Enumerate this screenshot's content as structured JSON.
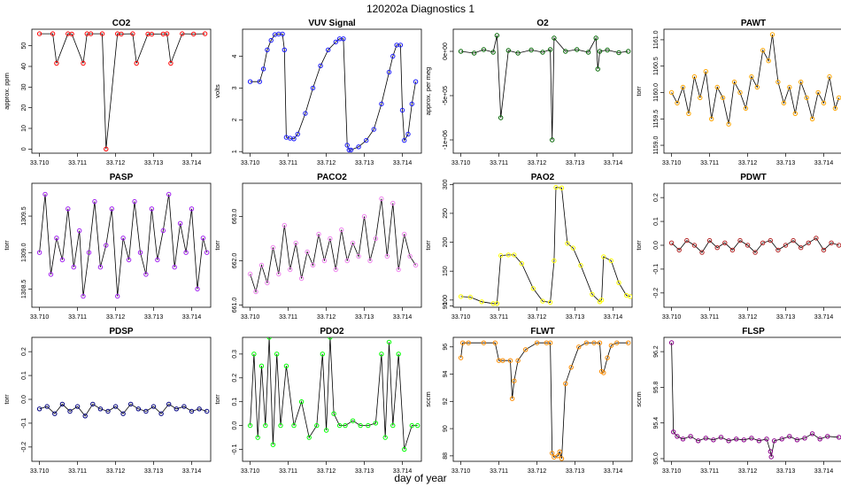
{
  "figure": {
    "title": "120202a   Diagnostics 1",
    "xlabel": "day of year"
  },
  "chart_data": [
    {
      "type": "scatter",
      "title": "CO2",
      "ylabel": "approx. ppm",
      "color": "#ff0000",
      "xlim": [
        33.7098,
        33.7145
      ],
      "ylim": [
        -2,
        58
      ],
      "xticks": [
        "33.710",
        "33.711",
        "33.712",
        "33.713",
        "33.714"
      ],
      "yticks": [
        {
          "v": 0,
          "label": "0"
        },
        {
          "v": 10,
          "label": "10"
        },
        {
          "v": 20,
          "label": "20"
        },
        {
          "v": 30,
          "label": "30"
        },
        {
          "v": 40,
          "label": "40"
        },
        {
          "v": 50,
          "label": "50"
        }
      ],
      "x": [
        33.71,
        33.71035,
        33.71045,
        33.71075,
        33.71085,
        33.71115,
        33.71125,
        33.71135,
        33.71165,
        33.71175,
        33.71205,
        33.71215,
        33.71245,
        33.71255,
        33.71285,
        33.71295,
        33.71325,
        33.71335,
        33.71345,
        33.71375,
        33.71405,
        33.71435
      ],
      "y": [
        55.8,
        55.8,
        41.5,
        55.8,
        55.7,
        41.5,
        55.8,
        55.8,
        55.8,
        0.0,
        55.8,
        55.7,
        55.8,
        41.5,
        55.7,
        55.6,
        55.7,
        55.8,
        41.5,
        55.8,
        55.7,
        55.8
      ]
    },
    {
      "type": "scatter",
      "title": "VUV Signal",
      "ylabel": "volts",
      "color": "#1a1aff",
      "xlim": [
        33.7098,
        33.7145
      ],
      "ylim": [
        0.95,
        4.85
      ],
      "xticks": [
        "33.710",
        "33.711",
        "33.712",
        "33.713",
        "33.714"
      ],
      "yticks": [
        {
          "v": 1,
          "label": "1"
        },
        {
          "v": 2,
          "label": "2"
        },
        {
          "v": 3,
          "label": "3"
        },
        {
          "v": 4,
          "label": "4"
        }
      ],
      "x": [
        33.71,
        33.71025,
        33.71035,
        33.71045,
        33.71055,
        33.71065,
        33.71075,
        33.71085,
        33.7109,
        33.71095,
        33.71105,
        33.71115,
        33.71125,
        33.71145,
        33.71165,
        33.71185,
        33.71205,
        33.71225,
        33.71235,
        33.71245,
        33.71255,
        33.7126,
        33.71265,
        33.71285,
        33.71305,
        33.71325,
        33.71345,
        33.71365,
        33.71375,
        33.71385,
        33.71395,
        33.714,
        33.71405,
        33.71415,
        33.71425,
        33.71435
      ],
      "y": [
        3.2,
        3.2,
        3.6,
        4.2,
        4.5,
        4.68,
        4.7,
        4.7,
        4.2,
        1.45,
        1.42,
        1.4,
        1.55,
        2.2,
        3.0,
        3.7,
        4.2,
        4.45,
        4.55,
        4.55,
        1.2,
        1.05,
        1.05,
        1.15,
        1.35,
        1.7,
        2.5,
        3.5,
        4.0,
        4.35,
        4.35,
        2.3,
        1.35,
        1.55,
        2.5,
        3.2
      ]
    },
    {
      "type": "scatter",
      "title": "O2",
      "ylabel": "approx. per meg",
      "color": "#006400",
      "xlim": [
        33.7098,
        33.7145
      ],
      "ylim": [
        -1150000.0,
        250000.0
      ],
      "xticks": [
        "33.710",
        "33.711",
        "33.712",
        "33.713",
        "33.714"
      ],
      "yticks": [
        {
          "v": -1000000,
          "label": "-1e+06"
        },
        {
          "v": -500000,
          "label": "-5e+05"
        },
        {
          "v": 0,
          "label": "0e+00"
        }
      ],
      "x": [
        33.71,
        33.71035,
        33.7106,
        33.71085,
        33.71095,
        33.71105,
        33.71125,
        33.7115,
        33.71185,
        33.71215,
        33.71235,
        33.7124,
        33.71245,
        33.71275,
        33.71305,
        33.71335,
        33.71355,
        33.7136,
        33.71365,
        33.71385,
        33.71415,
        33.7144
      ],
      "y": [
        0,
        -20000,
        20000,
        -10000,
        180000.0,
        -750000.0,
        10000,
        -20000,
        15000,
        -10000,
        20000,
        -1000000.0,
        150000.0,
        0,
        20000,
        -10000,
        150000.0,
        -200000.0,
        0,
        15000,
        -15000,
        0
      ]
    },
    {
      "type": "scatter",
      "title": "PAWT",
      "ylabel": "torr",
      "color": "#ffa500",
      "xlim": [
        33.7098,
        33.7145
      ],
      "ylim": [
        1158.85,
        1161.2
      ],
      "xticks": [
        "33.710",
        "33.711",
        "33.712",
        "33.713",
        "33.714"
      ],
      "yticks": [
        {
          "v": 1159.0,
          "label": "1159.0"
        },
        {
          "v": 1159.5,
          "label": "1159.5"
        },
        {
          "v": 1160.0,
          "label": "1160.0"
        },
        {
          "v": 1160.5,
          "label": "1160.5"
        },
        {
          "v": 1161.0,
          "label": "1161.0"
        }
      ],
      "x": [
        33.71,
        33.71015,
        33.7103,
        33.71045,
        33.7106,
        33.71075,
        33.7109,
        33.71105,
        33.7112,
        33.71135,
        33.7115,
        33.71165,
        33.7118,
        33.71195,
        33.7121,
        33.71225,
        33.7124,
        33.71255,
        33.71265,
        33.7128,
        33.71295,
        33.7131,
        33.71325,
        33.7134,
        33.71355,
        33.7137,
        33.71385,
        33.714,
        33.71415,
        33.7143,
        33.7144
      ],
      "y": [
        1160.0,
        1159.8,
        1160.1,
        1159.6,
        1160.3,
        1159.9,
        1160.4,
        1159.5,
        1160.1,
        1159.9,
        1159.4,
        1160.2,
        1160.0,
        1159.7,
        1160.3,
        1160.1,
        1160.8,
        1160.6,
        1161.1,
        1160.2,
        1159.8,
        1160.1,
        1159.6,
        1160.2,
        1159.9,
        1159.5,
        1160.0,
        1159.8,
        1160.3,
        1159.7,
        1159.9
      ]
    },
    {
      "type": "scatter",
      "title": "PASP",
      "ylabel": "torr",
      "color": "#a020f0",
      "xlim": [
        33.7098,
        33.7145
      ],
      "ylim": [
        1308.25,
        1309.95
      ],
      "xticks": [
        "33.710",
        "33.711",
        "33.712",
        "33.713",
        "33.714"
      ],
      "yticks": [
        {
          "v": 1308.5,
          "label": "1308.5"
        },
        {
          "v": 1309.0,
          "label": "1309.0"
        },
        {
          "v": 1309.5,
          "label": "1309.5"
        }
      ],
      "x": [
        33.71,
        33.71015,
        33.7103,
        33.71045,
        33.7106,
        33.71075,
        33.7109,
        33.71105,
        33.71115,
        33.7113,
        33.71145,
        33.7116,
        33.71175,
        33.7119,
        33.71205,
        33.7122,
        33.71235,
        33.7125,
        33.71265,
        33.7128,
        33.71295,
        33.7131,
        33.71325,
        33.7134,
        33.71355,
        33.7137,
        33.71385,
        33.714,
        33.71415,
        33.7143,
        33.7144
      ],
      "y": [
        1309.0,
        1309.8,
        1308.7,
        1309.2,
        1308.9,
        1309.6,
        1308.8,
        1309.3,
        1308.4,
        1309.0,
        1309.7,
        1308.8,
        1309.1,
        1309.6,
        1308.4,
        1309.2,
        1308.9,
        1309.7,
        1309.0,
        1308.7,
        1309.6,
        1308.9,
        1309.3,
        1309.8,
        1308.8,
        1309.4,
        1309.0,
        1309.6,
        1308.5,
        1309.2,
        1309.0
      ]
    },
    {
      "type": "scatter",
      "title": "PACO2",
      "ylabel": "torr",
      "color": "#ee82ee",
      "xlim": [
        33.7098,
        33.7145
      ],
      "ylim": [
        660.95,
        663.75
      ],
      "xticks": [
        "33.710",
        "33.711",
        "33.712",
        "33.713",
        "33.714"
      ],
      "yticks": [
        {
          "v": 661.0,
          "label": "661.0"
        },
        {
          "v": 662.0,
          "label": "662.0"
        },
        {
          "v": 663.0,
          "label": "663.0"
        }
      ],
      "x": [
        33.71,
        33.71015,
        33.7103,
        33.71045,
        33.7106,
        33.71075,
        33.7109,
        33.71105,
        33.7112,
        33.71135,
        33.7115,
        33.71165,
        33.7118,
        33.71195,
        33.7121,
        33.71225,
        33.7124,
        33.71255,
        33.7127,
        33.71285,
        33.713,
        33.71315,
        33.7133,
        33.71345,
        33.7136,
        33.71375,
        33.7139,
        33.71405,
        33.7142,
        33.71435
      ],
      "y": [
        661.7,
        661.3,
        661.9,
        661.5,
        662.3,
        661.7,
        662.8,
        661.8,
        662.4,
        661.6,
        662.2,
        661.9,
        662.6,
        662.0,
        662.5,
        661.8,
        662.7,
        662.0,
        662.4,
        662.1,
        663.0,
        662.0,
        662.5,
        663.4,
        662.1,
        663.3,
        661.8,
        662.6,
        662.1,
        661.9
      ]
    },
    {
      "type": "scatter",
      "title": "PAO2",
      "ylabel": "torr",
      "color": "#ffff00",
      "xlim": [
        33.7098,
        33.7145
      ],
      "ylim": [
        87.5,
        302
      ],
      "xticks": [
        "33.710",
        "33.711",
        "33.712",
        "33.713",
        "33.714"
      ],
      "yticks": [
        {
          "v": 90,
          "label": "90"
        },
        {
          "v": 100,
          "label": "100"
        },
        {
          "v": 150,
          "label": "150"
        },
        {
          "v": 200,
          "label": "200"
        },
        {
          "v": 250,
          "label": "250"
        },
        {
          "v": 300,
          "label": "300"
        }
      ],
      "x": [
        33.71,
        33.71025,
        33.71055,
        33.71085,
        33.71095,
        33.71105,
        33.71125,
        33.7114,
        33.7116,
        33.7119,
        33.71215,
        33.71235,
        33.71245,
        33.7125,
        33.71265,
        33.7128,
        33.71295,
        33.71315,
        33.71345,
        33.71365,
        33.7137,
        33.71375,
        33.71395,
        33.71415,
        33.71435,
        33.71445
      ],
      "y": [
        106,
        105,
        97,
        94,
        94,
        177,
        178,
        178,
        163,
        120,
        98,
        96,
        168,
        295,
        294,
        198,
        190,
        160,
        110,
        97,
        100,
        175,
        168,
        130,
        108,
        106
      ]
    },
    {
      "type": "scatter",
      "title": "PDWT",
      "ylabel": "torr",
      "color": "#b22222",
      "xlim": [
        33.7098,
        33.7145
      ],
      "ylim": [
        -0.26,
        0.26
      ],
      "xticks": [
        "33.710",
        "33.711",
        "33.712",
        "33.713",
        "33.714"
      ],
      "yticks": [
        {
          "v": -0.2,
          "label": "-0.2"
        },
        {
          "v": -0.1,
          "label": "-0.1"
        },
        {
          "v": 0.0,
          "label": "0.0"
        },
        {
          "v": 0.1,
          "label": "0.1"
        },
        {
          "v": 0.2,
          "label": "0.2"
        }
      ],
      "x": [
        33.71,
        33.7102,
        33.7104,
        33.7106,
        33.7108,
        33.711,
        33.7112,
        33.7114,
        33.7116,
        33.7118,
        33.712,
        33.7122,
        33.7124,
        33.7126,
        33.7128,
        33.713,
        33.7132,
        33.7134,
        33.7136,
        33.7138,
        33.714,
        33.7142,
        33.7144
      ],
      "y": [
        0.01,
        -0.02,
        0.02,
        0.0,
        -0.03,
        0.02,
        -0.01,
        0.01,
        -0.02,
        0.02,
        0.0,
        -0.03,
        0.01,
        0.02,
        -0.02,
        0.0,
        0.02,
        -0.01,
        0.01,
        0.03,
        -0.02,
        0.01,
        0.0
      ]
    },
    {
      "type": "scatter",
      "title": "PDSP",
      "ylabel": "torr",
      "color": "#000080",
      "xlim": [
        33.7098,
        33.7145
      ],
      "ylim": [
        -0.26,
        0.26
      ],
      "xticks": [
        "33.710",
        "33.711",
        "33.712",
        "33.713",
        "33.714"
      ],
      "yticks": [
        {
          "v": -0.2,
          "label": "-0.2"
        },
        {
          "v": -0.1,
          "label": "-0.1"
        },
        {
          "v": 0.0,
          "label": "0.0"
        },
        {
          "v": 0.1,
          "label": "0.1"
        },
        {
          "v": 0.2,
          "label": "0.2"
        }
      ],
      "x": [
        33.71,
        33.7102,
        33.7104,
        33.7106,
        33.7108,
        33.711,
        33.7112,
        33.7114,
        33.7116,
        33.7118,
        33.712,
        33.7122,
        33.7124,
        33.7126,
        33.7128,
        33.713,
        33.7132,
        33.7134,
        33.7136,
        33.7138,
        33.714,
        33.7142,
        33.7144
      ],
      "y": [
        -0.04,
        -0.03,
        -0.06,
        -0.02,
        -0.05,
        -0.03,
        -0.07,
        -0.02,
        -0.04,
        -0.05,
        -0.03,
        -0.06,
        -0.02,
        -0.04,
        -0.05,
        -0.03,
        -0.06,
        -0.02,
        -0.04,
        -0.03,
        -0.05,
        -0.04,
        -0.05
      ]
    },
    {
      "type": "scatter",
      "title": "PDO2",
      "ylabel": "torr",
      "color": "#00ff00",
      "xlim": [
        33.7098,
        33.7145
      ],
      "ylim": [
        -0.15,
        0.37
      ],
      "xticks": [
        "33.710",
        "33.711",
        "33.712",
        "33.713",
        "33.714"
      ],
      "yticks": [
        {
          "v": -0.1,
          "label": "-0.1"
        },
        {
          "v": 0.0,
          "label": "0.0"
        },
        {
          "v": 0.1,
          "label": "0.1"
        },
        {
          "v": 0.2,
          "label": "0.2"
        },
        {
          "v": 0.3,
          "label": "0.3"
        }
      ],
      "x": [
        33.71,
        33.7101,
        33.7102,
        33.7103,
        33.7104,
        33.7105,
        33.7106,
        33.7107,
        33.7108,
        33.71095,
        33.71115,
        33.71135,
        33.71155,
        33.71175,
        33.7119,
        33.712,
        33.7121,
        33.7122,
        33.71235,
        33.7125,
        33.7127,
        33.7129,
        33.7131,
        33.7133,
        33.71345,
        33.71355,
        33.71365,
        33.71375,
        33.7139,
        33.71405,
        33.71425,
        33.7144
      ],
      "y": [
        0.0,
        0.3,
        -0.05,
        0.25,
        0.0,
        0.37,
        -0.08,
        0.3,
        0.0,
        0.25,
        0.0,
        0.1,
        -0.05,
        0.0,
        0.3,
        -0.02,
        0.37,
        0.05,
        0.0,
        0.0,
        0.02,
        0.0,
        0.0,
        0.01,
        0.3,
        -0.05,
        0.35,
        0.0,
        0.3,
        -0.1,
        0.0,
        0.0
      ]
    },
    {
      "type": "scatter",
      "title": "FLWT",
      "ylabel": "sccm",
      "color": "#ff8c00",
      "xlim": [
        33.7098,
        33.7145
      ],
      "ylim": [
        87.6,
        96.7
      ],
      "xticks": [
        "33.710",
        "33.711",
        "33.712",
        "33.713",
        "33.714"
      ],
      "yticks": [
        {
          "v": 88,
          "label": "88"
        },
        {
          "v": 90,
          "label": "90"
        },
        {
          "v": 92,
          "label": "92"
        },
        {
          "v": 94,
          "label": "94"
        },
        {
          "v": 96,
          "label": "96"
        }
      ],
      "x": [
        33.71,
        33.71005,
        33.7102,
        33.7106,
        33.7109,
        33.711,
        33.7111,
        33.7113,
        33.71135,
        33.7114,
        33.7115,
        33.7117,
        33.712,
        33.71225,
        33.71235,
        33.7124,
        33.71245,
        33.71255,
        33.7126,
        33.71265,
        33.71275,
        33.7129,
        33.7131,
        33.7133,
        33.7135,
        33.71365,
        33.7137,
        33.71375,
        33.71385,
        33.71395,
        33.7141,
        33.7144
      ],
      "y": [
        95.2,
        96.3,
        96.3,
        96.3,
        96.3,
        95.0,
        95.0,
        95.0,
        92.2,
        93.5,
        95.0,
        95.8,
        96.3,
        96.3,
        96.3,
        88.2,
        87.9,
        88.0,
        88.3,
        87.8,
        93.3,
        94.5,
        96.0,
        96.3,
        96.3,
        96.3,
        94.2,
        94.1,
        95.2,
        96.1,
        96.3,
        96.3
      ]
    },
    {
      "type": "scatter",
      "title": "FLSP",
      "ylabel": "sccm",
      "color": "#8b008b",
      "xlim": [
        33.7098,
        33.7145
      ],
      "ylim": [
        94.97,
        96.36
      ],
      "xticks": [
        "33.710",
        "33.711",
        "33.712",
        "33.713",
        "33.714"
      ],
      "yticks": [
        {
          "v": 95.0,
          "label": "95.0"
        },
        {
          "v": 95.4,
          "label": "95.4"
        },
        {
          "v": 95.8,
          "label": "95.8"
        },
        {
          "v": 96.2,
          "label": "96.2"
        }
      ],
      "x": [
        33.71,
        33.71005,
        33.71015,
        33.7103,
        33.7105,
        33.7107,
        33.7109,
        33.7111,
        33.7113,
        33.7115,
        33.7117,
        33.7119,
        33.7121,
        33.7123,
        33.7125,
        33.7126,
        33.71262,
        33.7127,
        33.7129,
        33.7131,
        33.7133,
        33.7135,
        33.7137,
        33.7139,
        33.7141,
        33.7144
      ],
      "y": [
        96.3,
        95.3,
        95.25,
        95.22,
        95.25,
        95.2,
        95.23,
        95.21,
        95.24,
        95.2,
        95.22,
        95.21,
        95.23,
        95.2,
        95.22,
        95.08,
        95.02,
        95.2,
        95.22,
        95.25,
        95.21,
        95.23,
        95.28,
        95.22,
        95.25,
        95.24
      ]
    }
  ]
}
